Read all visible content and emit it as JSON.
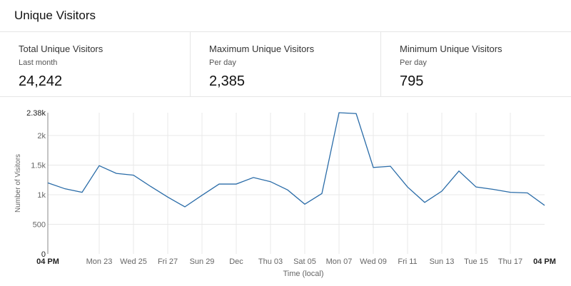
{
  "header": {
    "title": "Unique Visitors"
  },
  "stats": [
    {
      "title": "Total Unique Visitors",
      "subtitle": "Last month",
      "value": "24,242"
    },
    {
      "title": "Maximum Unique Visitors",
      "subtitle": "Per day",
      "value": "2,385"
    },
    {
      "title": "Minimum Unique Visitors",
      "subtitle": "Per day",
      "value": "795"
    }
  ],
  "colors": {
    "line": "#2a6ca8",
    "grid": "#e8e8e8"
  },
  "chart_data": {
    "type": "line",
    "xlabel": "Time (local)",
    "ylabel": "Number of Visitors",
    "ylim": [
      0,
      2385
    ],
    "yticks": [
      {
        "v": 0,
        "label": "0"
      },
      {
        "v": 500,
        "label": "500"
      },
      {
        "v": 1000,
        "label": "1k"
      },
      {
        "v": 1500,
        "label": "1.5k"
      },
      {
        "v": 2000,
        "label": "2k"
      },
      {
        "v": 2385,
        "label": "2.38k"
      }
    ],
    "xticks": [
      {
        "i": 0,
        "label": "04 PM",
        "bold": true
      },
      {
        "i": 3,
        "label": "Mon 23"
      },
      {
        "i": 5,
        "label": "Wed 25"
      },
      {
        "i": 7,
        "label": "Fri 27"
      },
      {
        "i": 9,
        "label": "Sun 29"
      },
      {
        "i": 11,
        "label": "Dec"
      },
      {
        "i": 13,
        "label": "Thu 03"
      },
      {
        "i": 15,
        "label": "Sat 05"
      },
      {
        "i": 17,
        "label": "Mon 07"
      },
      {
        "i": 19,
        "label": "Wed 09"
      },
      {
        "i": 21,
        "label": "Fri 11"
      },
      {
        "i": 23,
        "label": "Sun 13"
      },
      {
        "i": 25,
        "label": "Tue 15"
      },
      {
        "i": 27,
        "label": "Thu 17"
      },
      {
        "i": 29,
        "label": "04 PM",
        "bold": true
      }
    ],
    "x": [
      "Nov 20",
      "Nov 21",
      "Nov 22",
      "Nov 23",
      "Nov 24",
      "Nov 25",
      "Nov 26",
      "Nov 27",
      "Nov 28",
      "Nov 29",
      "Nov 30",
      "Dec 01",
      "Dec 02",
      "Dec 03",
      "Dec 04",
      "Dec 05",
      "Dec 06",
      "Dec 07",
      "Dec 08",
      "Dec 09",
      "Dec 10",
      "Dec 11",
      "Dec 12",
      "Dec 13",
      "Dec 14",
      "Dec 15",
      "Dec 16",
      "Dec 17",
      "Dec 18",
      "Dec 19"
    ],
    "series": [
      {
        "name": "Unique Visitors",
        "values": [
          1200,
          1100,
          1040,
          1490,
          1360,
          1330,
          1140,
          960,
          795,
          990,
          1180,
          1180,
          1290,
          1220,
          1080,
          840,
          1020,
          2385,
          2370,
          1460,
          1480,
          1130,
          870,
          1060,
          1400,
          1130,
          1090,
          1040,
          1030,
          820
        ]
      }
    ]
  }
}
